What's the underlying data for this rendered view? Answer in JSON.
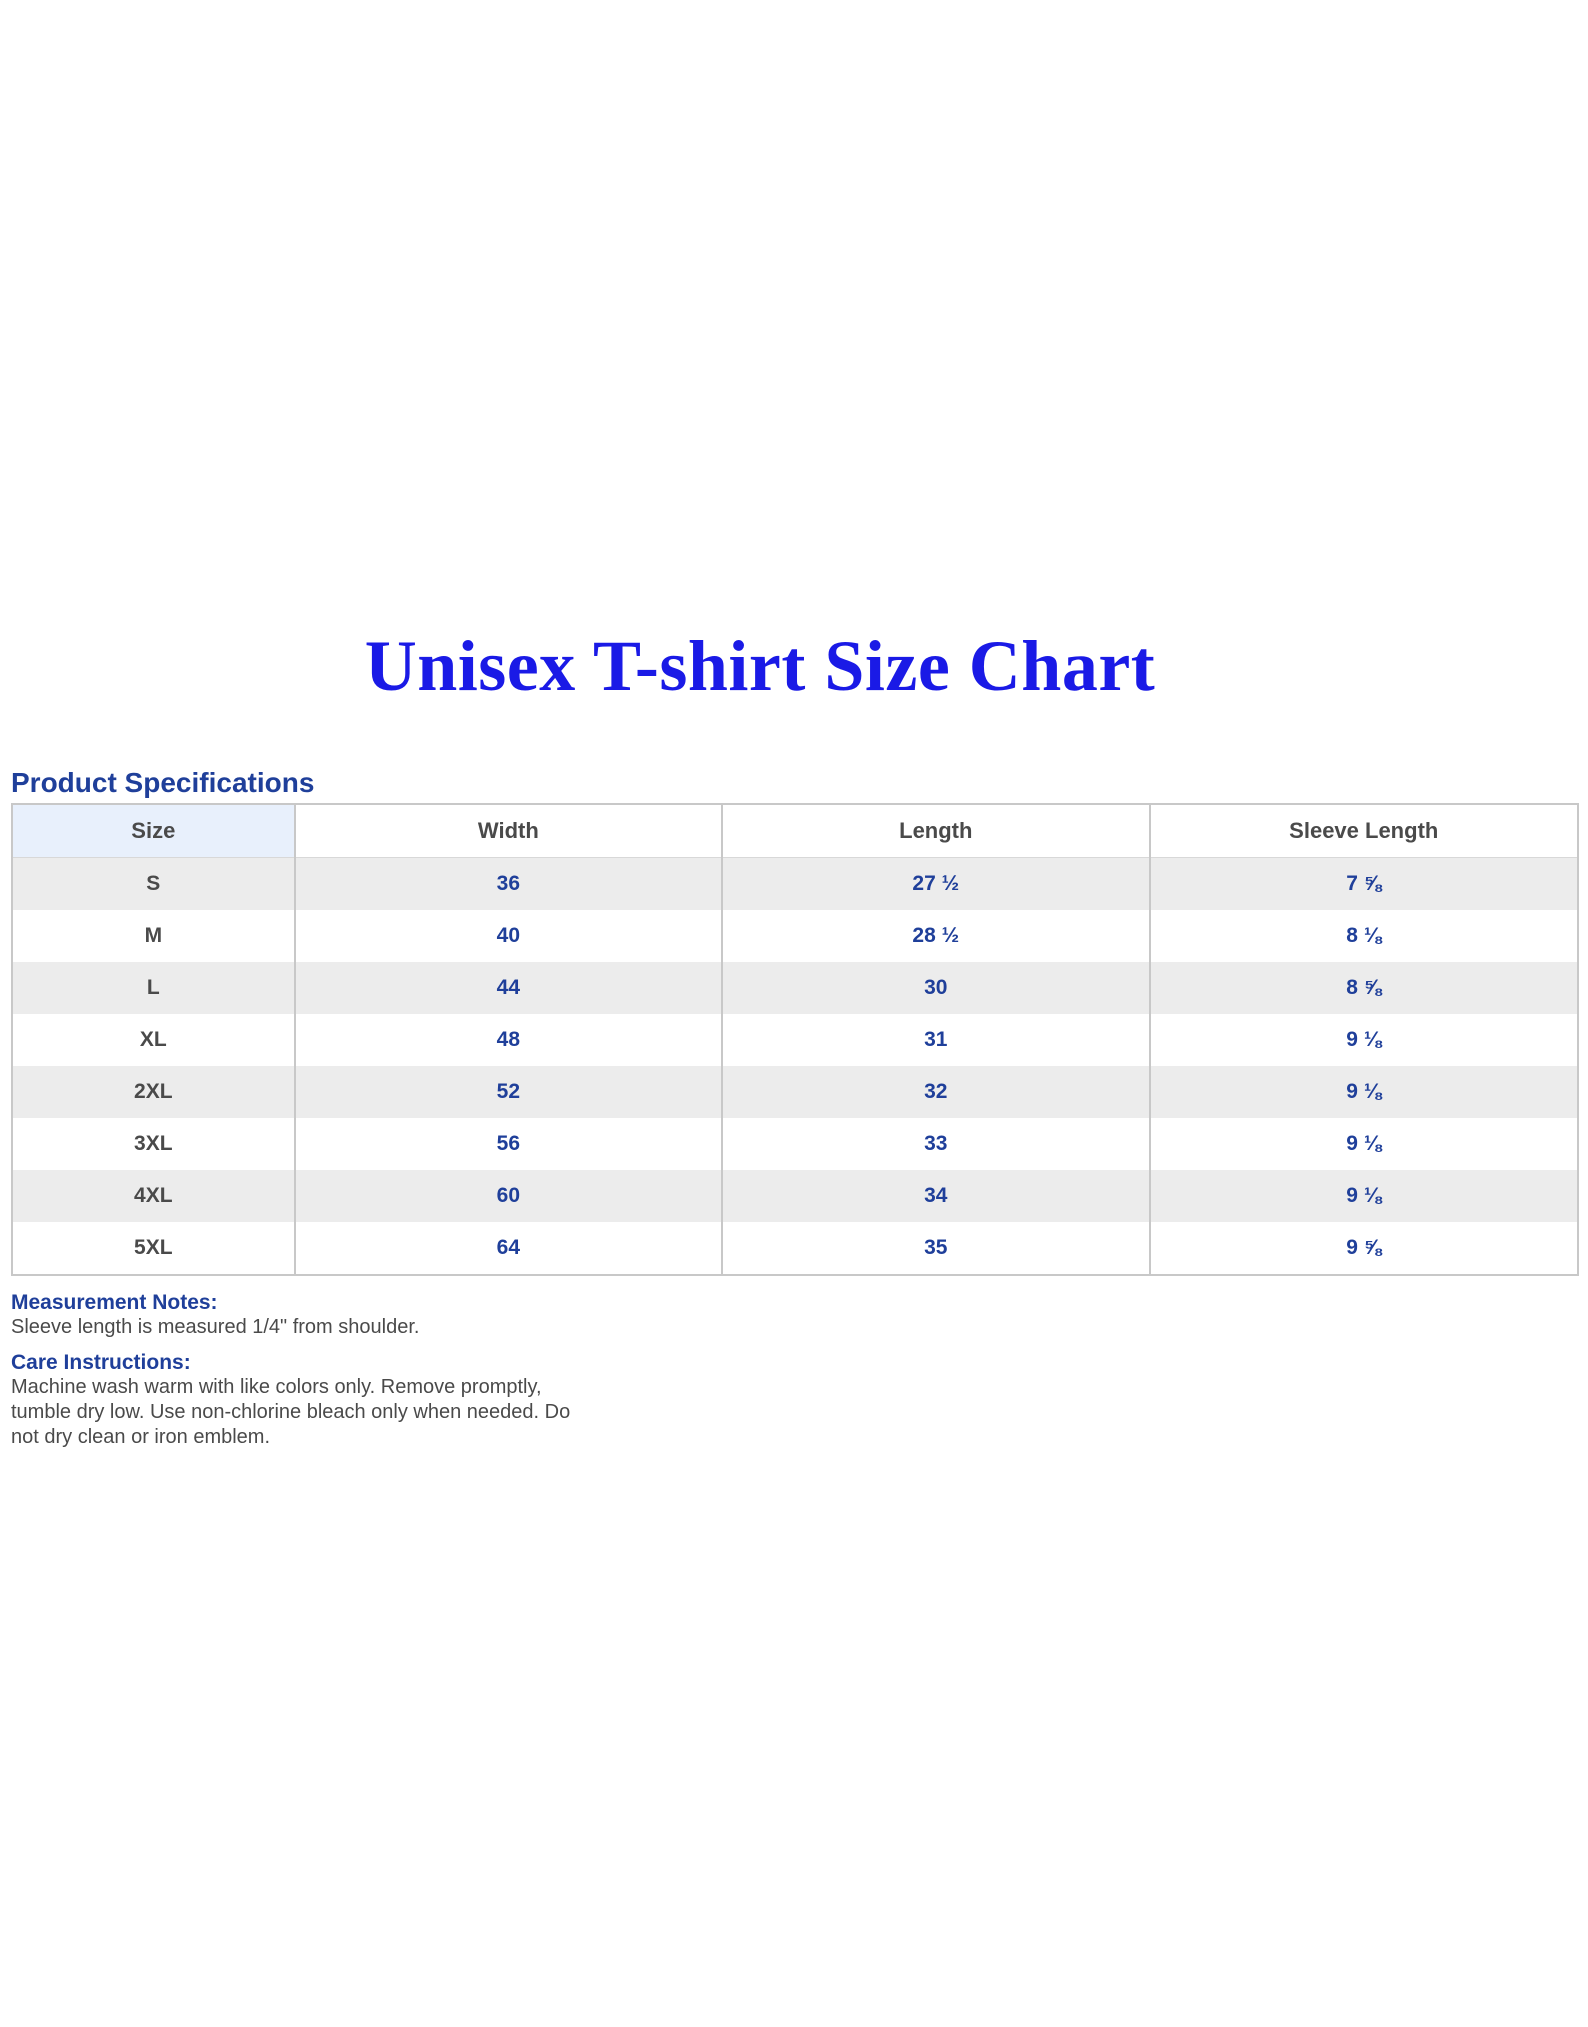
{
  "title": "Unisex T-shirt Size Chart",
  "section_title": "Product Specifications",
  "table": {
    "headers": [
      "Size",
      "Width",
      "Length",
      "Sleeve Length"
    ],
    "rows": [
      {
        "size": "S",
        "width": "36",
        "length": "27 ½",
        "sleeve": "7 ⅝"
      },
      {
        "size": "M",
        "width": "40",
        "length": "28 ½",
        "sleeve": "8 ⅛"
      },
      {
        "size": "L",
        "width": "44",
        "length": "30",
        "sleeve": "8 ⅝"
      },
      {
        "size": "XL",
        "width": "48",
        "length": "31",
        "sleeve": "9 ⅛"
      },
      {
        "size": "2XL",
        "width": "52",
        "length": "32",
        "sleeve": "9 ⅛"
      },
      {
        "size": "3XL",
        "width": "56",
        "length": "33",
        "sleeve": "9 ⅛"
      },
      {
        "size": "4XL",
        "width": "60",
        "length": "34",
        "sleeve": "9 ⅛"
      },
      {
        "size": "5XL",
        "width": "64",
        "length": "35",
        "sleeve": "9 ⅝"
      }
    ]
  },
  "measurement_notes": {
    "heading": "Measurement Notes:",
    "text": "Sleeve length is measured 1/4\" from shoulder."
  },
  "care_instructions": {
    "heading": "Care Instructions:",
    "text": "Machine wash warm with like colors only. Remove promptly, tumble dry low. Use non-chlorine bleach only when needed. Do not dry clean or iron emblem."
  },
  "colors": {
    "title": "#1a1ae6",
    "heading": "#1f3f9a",
    "body_text": "#4a4a4a",
    "row_stripe": "#ececec",
    "size_header_bg": "#e8f0fc",
    "border": "#c8c8c8"
  }
}
